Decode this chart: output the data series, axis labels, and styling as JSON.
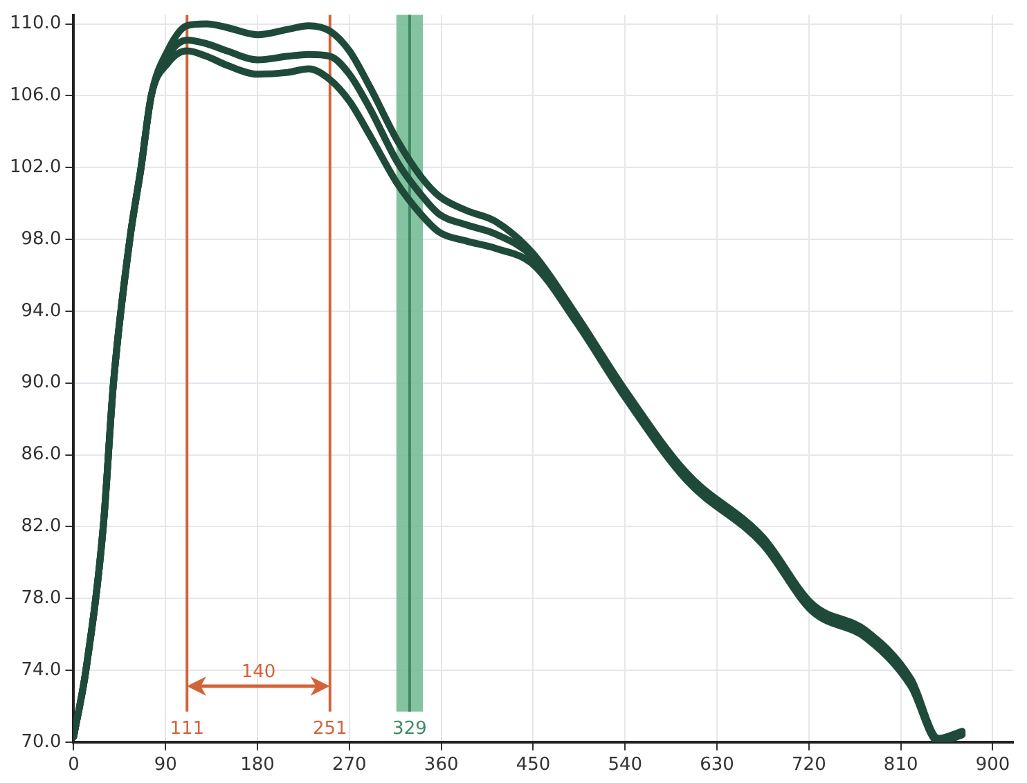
{
  "chart_data": {
    "type": "line",
    "x": [
      0,
      12,
      29,
      39,
      55,
      66,
      76,
      92,
      111,
      130,
      150,
      180,
      210,
      230,
      251,
      270,
      290,
      317,
      340,
      358,
      385,
      413,
      450,
      492,
      540,
      600,
      675,
      723,
      776,
      820,
      847,
      870
    ],
    "series": [
      {
        "color": "#1f4a3a",
        "values": [
          70.3,
          74,
          82,
          90,
          98,
          102,
          106,
          108.5,
          109.9,
          110,
          109.8,
          109.4,
          109.7,
          109.9,
          109.6,
          108.5,
          106.5,
          103.5,
          101.5,
          100.4,
          99.6,
          99,
          97.2,
          93.8,
          89.6,
          85,
          81.4,
          77.7,
          76.2,
          73.5,
          70.2,
          70.6
        ]
      },
      {
        "color": "#1f4a3a",
        "values": [
          70.3,
          74,
          82,
          90,
          98,
          102,
          106,
          108.2,
          109.1,
          108.9,
          108.5,
          108,
          108.2,
          108.3,
          108.2,
          107.2,
          105.3,
          102.3,
          100.5,
          99.4,
          98.8,
          98.3,
          97,
          93.6,
          89.4,
          84.8,
          81.2,
          77.5,
          76,
          73.3,
          70.1,
          70.5
        ]
      },
      {
        "color": "#1f4a3a",
        "values": [
          70.3,
          74,
          82,
          90,
          98,
          102,
          106,
          107.8,
          108.5,
          108.2,
          107.7,
          107.2,
          107.3,
          107.5,
          106.9,
          105.7,
          103.8,
          101.1,
          99.4,
          98.4,
          97.9,
          97.5,
          96.6,
          93.4,
          89.2,
          84.6,
          81,
          77.3,
          75.8,
          73.1,
          70,
          70.4
        ]
      }
    ],
    "xlim": [
      0,
      920
    ],
    "xticks": [
      0,
      90,
      180,
      270,
      360,
      450,
      540,
      630,
      720,
      810,
      900
    ],
    "ylim": [
      70,
      110.5
    ],
    "yticks": [
      {
        "value": 70,
        "label": "70.0"
      },
      {
        "value": 74,
        "label": "74.0"
      },
      {
        "value": 78,
        "label": "78.0"
      },
      {
        "value": 82,
        "label": "82.0"
      },
      {
        "value": 86,
        "label": "86.0"
      },
      {
        "value": 90,
        "label": "90.0"
      },
      {
        "value": 94,
        "label": "94.0"
      },
      {
        "value": 98,
        "label": "98.0"
      },
      {
        "value": 102,
        "label": "102.0"
      },
      {
        "value": 106,
        "label": "106.0"
      },
      {
        "value": 110,
        "label": "110.0"
      }
    ],
    "grid": true,
    "legend": false,
    "marker": "none",
    "line_style": "solid",
    "ref_lines": [
      {
        "axis": "x",
        "value": 111,
        "label": "111",
        "color": "#d2643a"
      },
      {
        "axis": "x",
        "value": 251,
        "label": "251",
        "color": "#d2643a"
      },
      {
        "axis": "x",
        "value": 329,
        "label": "329",
        "color": "#3f8a66"
      }
    ],
    "bands": [
      {
        "axis": "x",
        "from": 316,
        "to": 342,
        "color": "#6fb88e"
      }
    ],
    "annotations": [
      "140"
    ]
  }
}
